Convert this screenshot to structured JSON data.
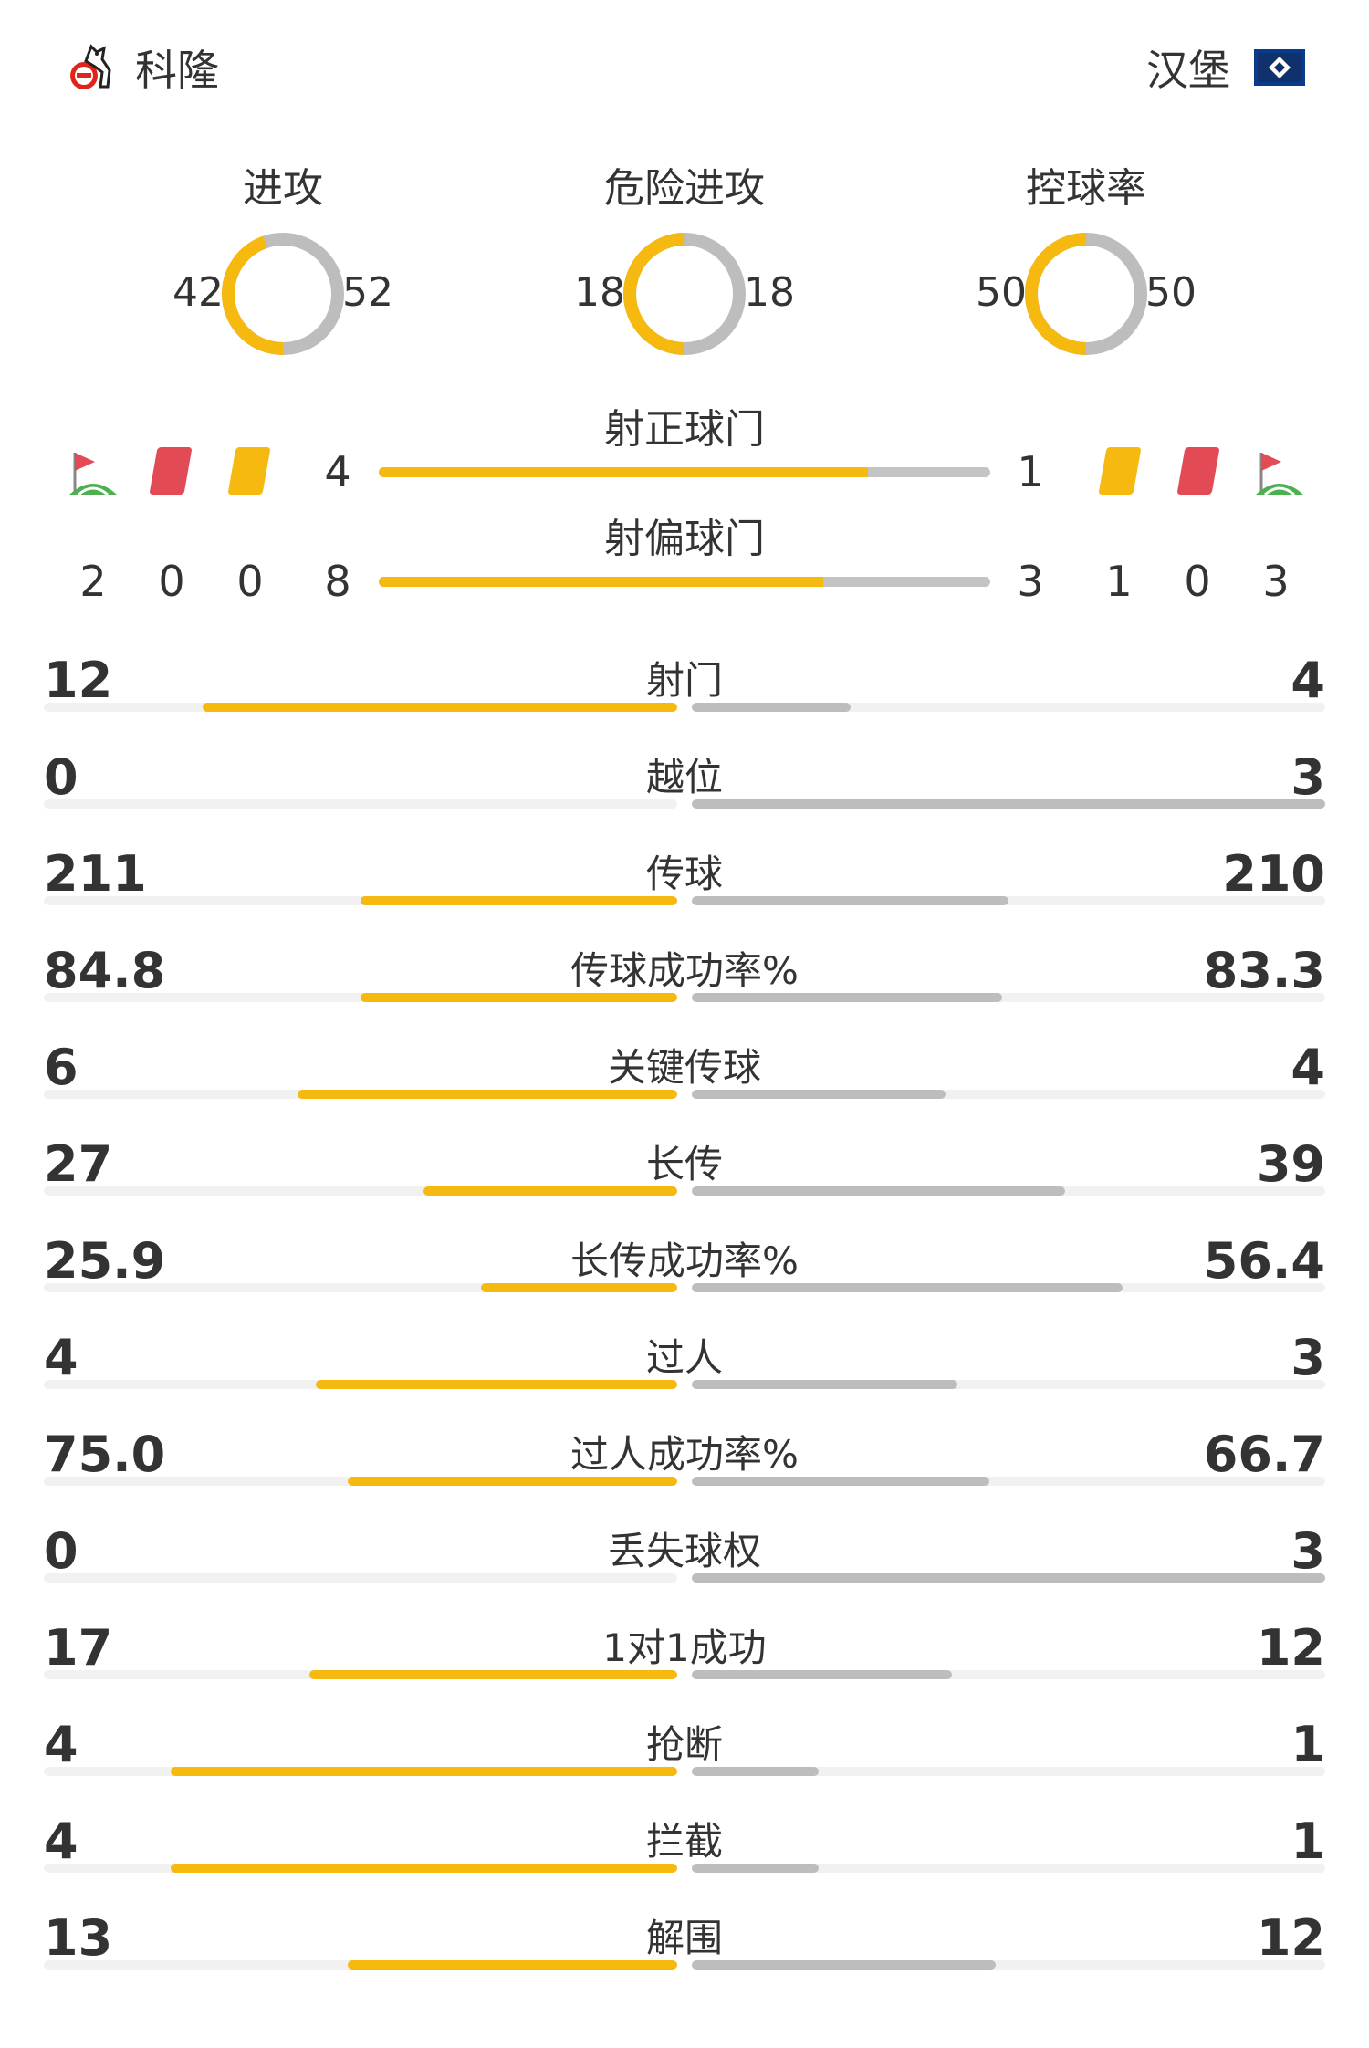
{
  "header": {
    "home_team": "科隆",
    "away_team": "汉堡",
    "home_crest_icon": "fc-koln-crest-icon",
    "away_crest_icon": "hamburg-flag-icon"
  },
  "colors": {
    "home": "#f5b90f",
    "away": "#bdbdbd",
    "red_card": "#e24a56",
    "yellow_card": "#f5b90f"
  },
  "gauges": [
    {
      "title": "进攻",
      "home": 42,
      "away": 52
    },
    {
      "title": "危险进攻",
      "home": 18,
      "away": 18
    },
    {
      "title": "控球率",
      "home": 50,
      "away": 50
    }
  ],
  "shots_on_target": {
    "title": "射正球门",
    "home": "4",
    "away": "1",
    "home_share": 0.8
  },
  "shots_off_target": {
    "title": "射偏球门",
    "home": "8",
    "away": "3",
    "home_share": 0.727
  },
  "discipline": {
    "home": {
      "corners": "2",
      "red_cards": "0",
      "yellow_cards": "0"
    },
    "away": {
      "yellow_cards": "1",
      "red_cards": "0",
      "corners": "3"
    },
    "icons": [
      "corner-flag-icon",
      "red-card-icon",
      "yellow-card-icon"
    ]
  },
  "stats": [
    {
      "label": "射门",
      "home": "12",
      "away": "4",
      "home_frac": 0.75,
      "away_frac": 0.25
    },
    {
      "label": "越位",
      "home": "0",
      "away": "3",
      "home_frac": 0.0,
      "away_frac": 1.0
    },
    {
      "label": "传球",
      "home": "211",
      "away": "210",
      "home_frac": 0.5,
      "away_frac": 0.5
    },
    {
      "label": "传球成功率%",
      "home": "84.8",
      "away": "83.3",
      "home_frac": 0.5,
      "away_frac": 0.49
    },
    {
      "label": "关键传球",
      "home": "6",
      "away": "4",
      "home_frac": 0.6,
      "away_frac": 0.4
    },
    {
      "label": "长传",
      "home": "27",
      "away": "39",
      "home_frac": 0.4,
      "away_frac": 0.59
    },
    {
      "label": "长传成功率%",
      "home": "25.9",
      "away": "56.4",
      "home_frac": 0.31,
      "away_frac": 0.68
    },
    {
      "label": "过人",
      "home": "4",
      "away": "3",
      "home_frac": 0.57,
      "away_frac": 0.42
    },
    {
      "label": "过人成功率%",
      "home": "75.0",
      "away": "66.7",
      "home_frac": 0.52,
      "away_frac": 0.47
    },
    {
      "label": "丢失球权",
      "home": "0",
      "away": "3",
      "home_frac": 0.0,
      "away_frac": 1.0
    },
    {
      "label": "1对1成功",
      "home": "17",
      "away": "12",
      "home_frac": 0.58,
      "away_frac": 0.41
    },
    {
      "label": "抢断",
      "home": "4",
      "away": "1",
      "home_frac": 0.8,
      "away_frac": 0.2
    },
    {
      "label": "拦截",
      "home": "4",
      "away": "1",
      "home_frac": 0.8,
      "away_frac": 0.2
    },
    {
      "label": "解围",
      "home": "13",
      "away": "12",
      "home_frac": 0.52,
      "away_frac": 0.48
    }
  ]
}
